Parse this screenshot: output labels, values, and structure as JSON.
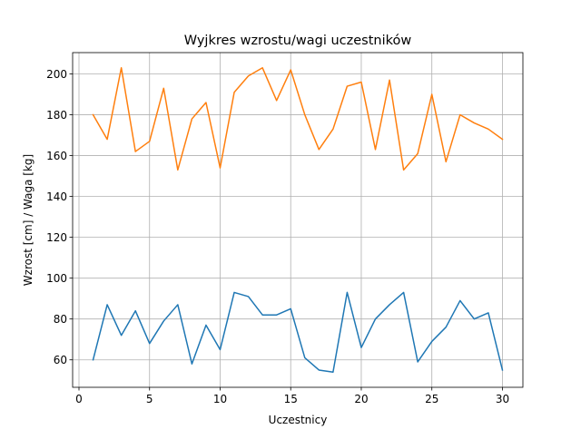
{
  "chart_data": {
    "type": "line",
    "title": "Wyjkres wzrostu/wagi uczestników",
    "xlabel": "Uczestnicy",
    "ylabel": "Wzrost [cm] / Waga [kg]",
    "x": [
      1,
      2,
      3,
      4,
      5,
      6,
      7,
      8,
      9,
      10,
      11,
      12,
      13,
      14,
      15,
      16,
      17,
      18,
      19,
      20,
      21,
      22,
      23,
      24,
      25,
      26,
      27,
      28,
      29,
      30
    ],
    "series": [
      {
        "color": "#1f77b4",
        "values": [
          60,
          87,
          72,
          84,
          68,
          79,
          87,
          58,
          77,
          65,
          93,
          91,
          82,
          82,
          85,
          61,
          55,
          54,
          93,
          66,
          80,
          87,
          93,
          59,
          69,
          76,
          89,
          80,
          83,
          55
        ]
      },
      {
        "color": "#ff7f0e",
        "values": [
          180,
          168,
          203,
          162,
          167,
          193,
          153,
          178,
          186,
          154,
          191,
          199,
          203,
          187,
          202,
          180,
          163,
          173,
          194,
          196,
          163,
          197,
          153,
          161,
          190,
          157,
          180,
          176,
          173,
          168
        ]
      }
    ],
    "xlim": [
      -0.45,
      31.45
    ],
    "ylim": [
      46.55,
      210.45
    ],
    "xticks": [
      0,
      5,
      10,
      15,
      20,
      25,
      30
    ],
    "yticks": [
      60,
      80,
      100,
      120,
      140,
      160,
      180,
      200
    ],
    "grid": true
  }
}
